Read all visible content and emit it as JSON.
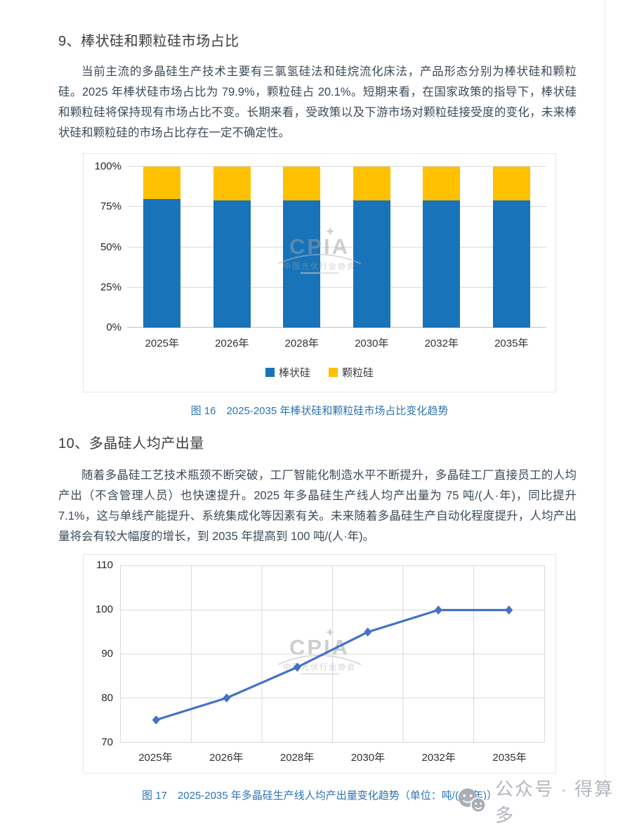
{
  "page": {
    "section9_heading": "9、棒状硅和颗粒硅市场占比",
    "para9": "当前主流的多晶硅生产技术主要有三氯氢硅法和硅烷流化床法，产品形态分别为棒状硅和颗粒硅。2025 年棒状硅市场占比为 79.9%，颗粒硅占 20.1%。短期来看，在国家政策的指导下，棒状硅和颗粒硅将保持现有市场占比不变。长期来看，受政策以及下游市场对颗粒硅接受度的变化，未来棒状硅和颗粒硅的市场占比存在一定不确定性。",
    "fig16_caption": "图 16　2025-2035 年棒状硅和颗粒硅市场占比变化趋势",
    "section10_heading": "10、多晶硅人均产出量",
    "para10": "随着多晶硅工艺技术瓶颈不断突破，工厂智能化制造水平不断提升，多晶硅工厂直接员工的人均产出（不含管理人员）也快速提升。2025 年多晶硅生产线人均产出量为 75 吨/(人·年)，同比提升 7.1%，这与单线产能提升、系统集成化等因素有关。未来随着多晶硅生产自动化程度提升，人均产出量将会有较大幅度的增长，到 2035 年提高到 100 吨/(人·年)。",
    "fig17_caption": "图 17　2025-2035 年多晶硅生产线人均产出量变化趋势（单位：吨/(人·年)）"
  },
  "watermark": {
    "logo_text": "CPIA",
    "org_name": "中国光伏行业协会"
  },
  "footer": {
    "wechat_label": "公众号 · 得算多"
  },
  "colors": {
    "bar_blue": "#1873B8",
    "bar_yellow": "#FFC000",
    "line_blue": "#4472C4",
    "caption_blue": "#2E74B5",
    "grid": "#D9D9D9"
  },
  "chart_data": [
    {
      "type": "bar",
      "stacked": true,
      "unit": "%",
      "categories": [
        "2025年",
        "2026年",
        "2028年",
        "2030年",
        "2032年",
        "2035年"
      ],
      "series": [
        {
          "name": "棒状硅",
          "color": "#1873B8",
          "values": [
            79.9,
            79,
            79,
            79,
            79,
            79
          ]
        },
        {
          "name": "颗粒硅",
          "color": "#FFC000",
          "values": [
            20.1,
            21,
            21,
            21,
            21,
            21
          ]
        }
      ],
      "ylim": [
        0,
        100
      ],
      "yticks_pct": [
        0,
        25,
        50,
        75,
        100
      ],
      "ytick_labels": [
        "0%",
        "25%",
        "50%",
        "75%",
        "100%"
      ],
      "legend_position": "bottom",
      "grid": "horizontal"
    },
    {
      "type": "line",
      "categories": [
        "2025年",
        "2026年",
        "2028年",
        "2030年",
        "2032年",
        "2035年"
      ],
      "values": [
        75,
        80,
        87,
        95,
        100,
        100
      ],
      "ylim": [
        70,
        110
      ],
      "yticks": [
        70,
        80,
        90,
        100,
        110
      ],
      "marker": "diamond",
      "grid": "both",
      "legend_position": "none"
    }
  ]
}
